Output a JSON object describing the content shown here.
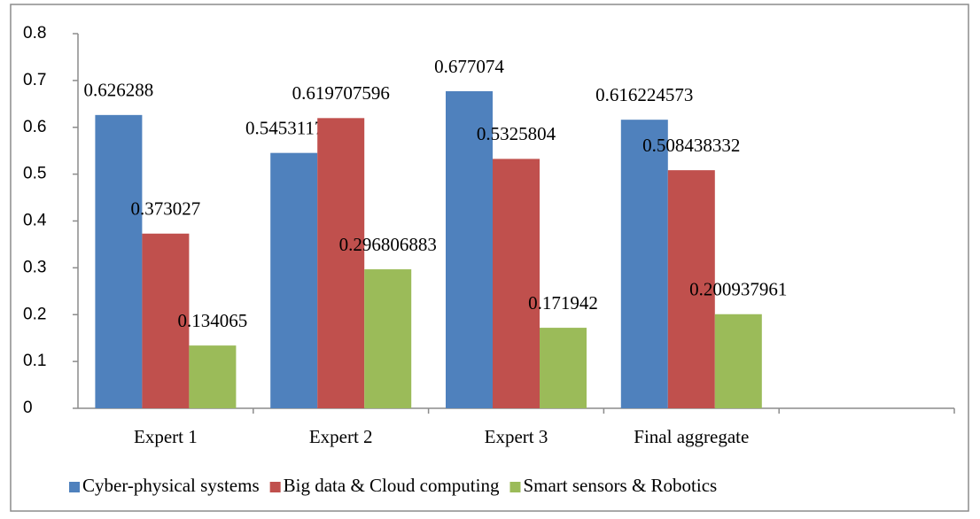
{
  "chart_data": {
    "type": "bar",
    "categories": [
      "Expert 1",
      "Expert 2",
      "Expert 3",
      "Final aggregate",
      null
    ],
    "series": [
      {
        "name": "Cyber-physical systems",
        "color": "#4f81bd",
        "values": [
          0.626288,
          0.545311719,
          0.677074,
          0.616224573,
          null
        ]
      },
      {
        "name": "Big data & Cloud computing",
        "color": "#c0504d",
        "values": [
          0.373027,
          0.619707596,
          0.5325804,
          0.508438332,
          null
        ]
      },
      {
        "name": "Smart sensors & Robotics",
        "color": "#9bbb59",
        "values": [
          0.134065,
          0.296806883,
          0.171942,
          0.200937961,
          null
        ]
      }
    ],
    "ylim": [
      0,
      0.8
    ],
    "yticks": [
      0,
      0.1,
      0.2,
      0.3,
      0.4,
      0.5,
      0.6,
      0.7,
      0.8
    ],
    "grid": false,
    "legend": "bottom"
  }
}
